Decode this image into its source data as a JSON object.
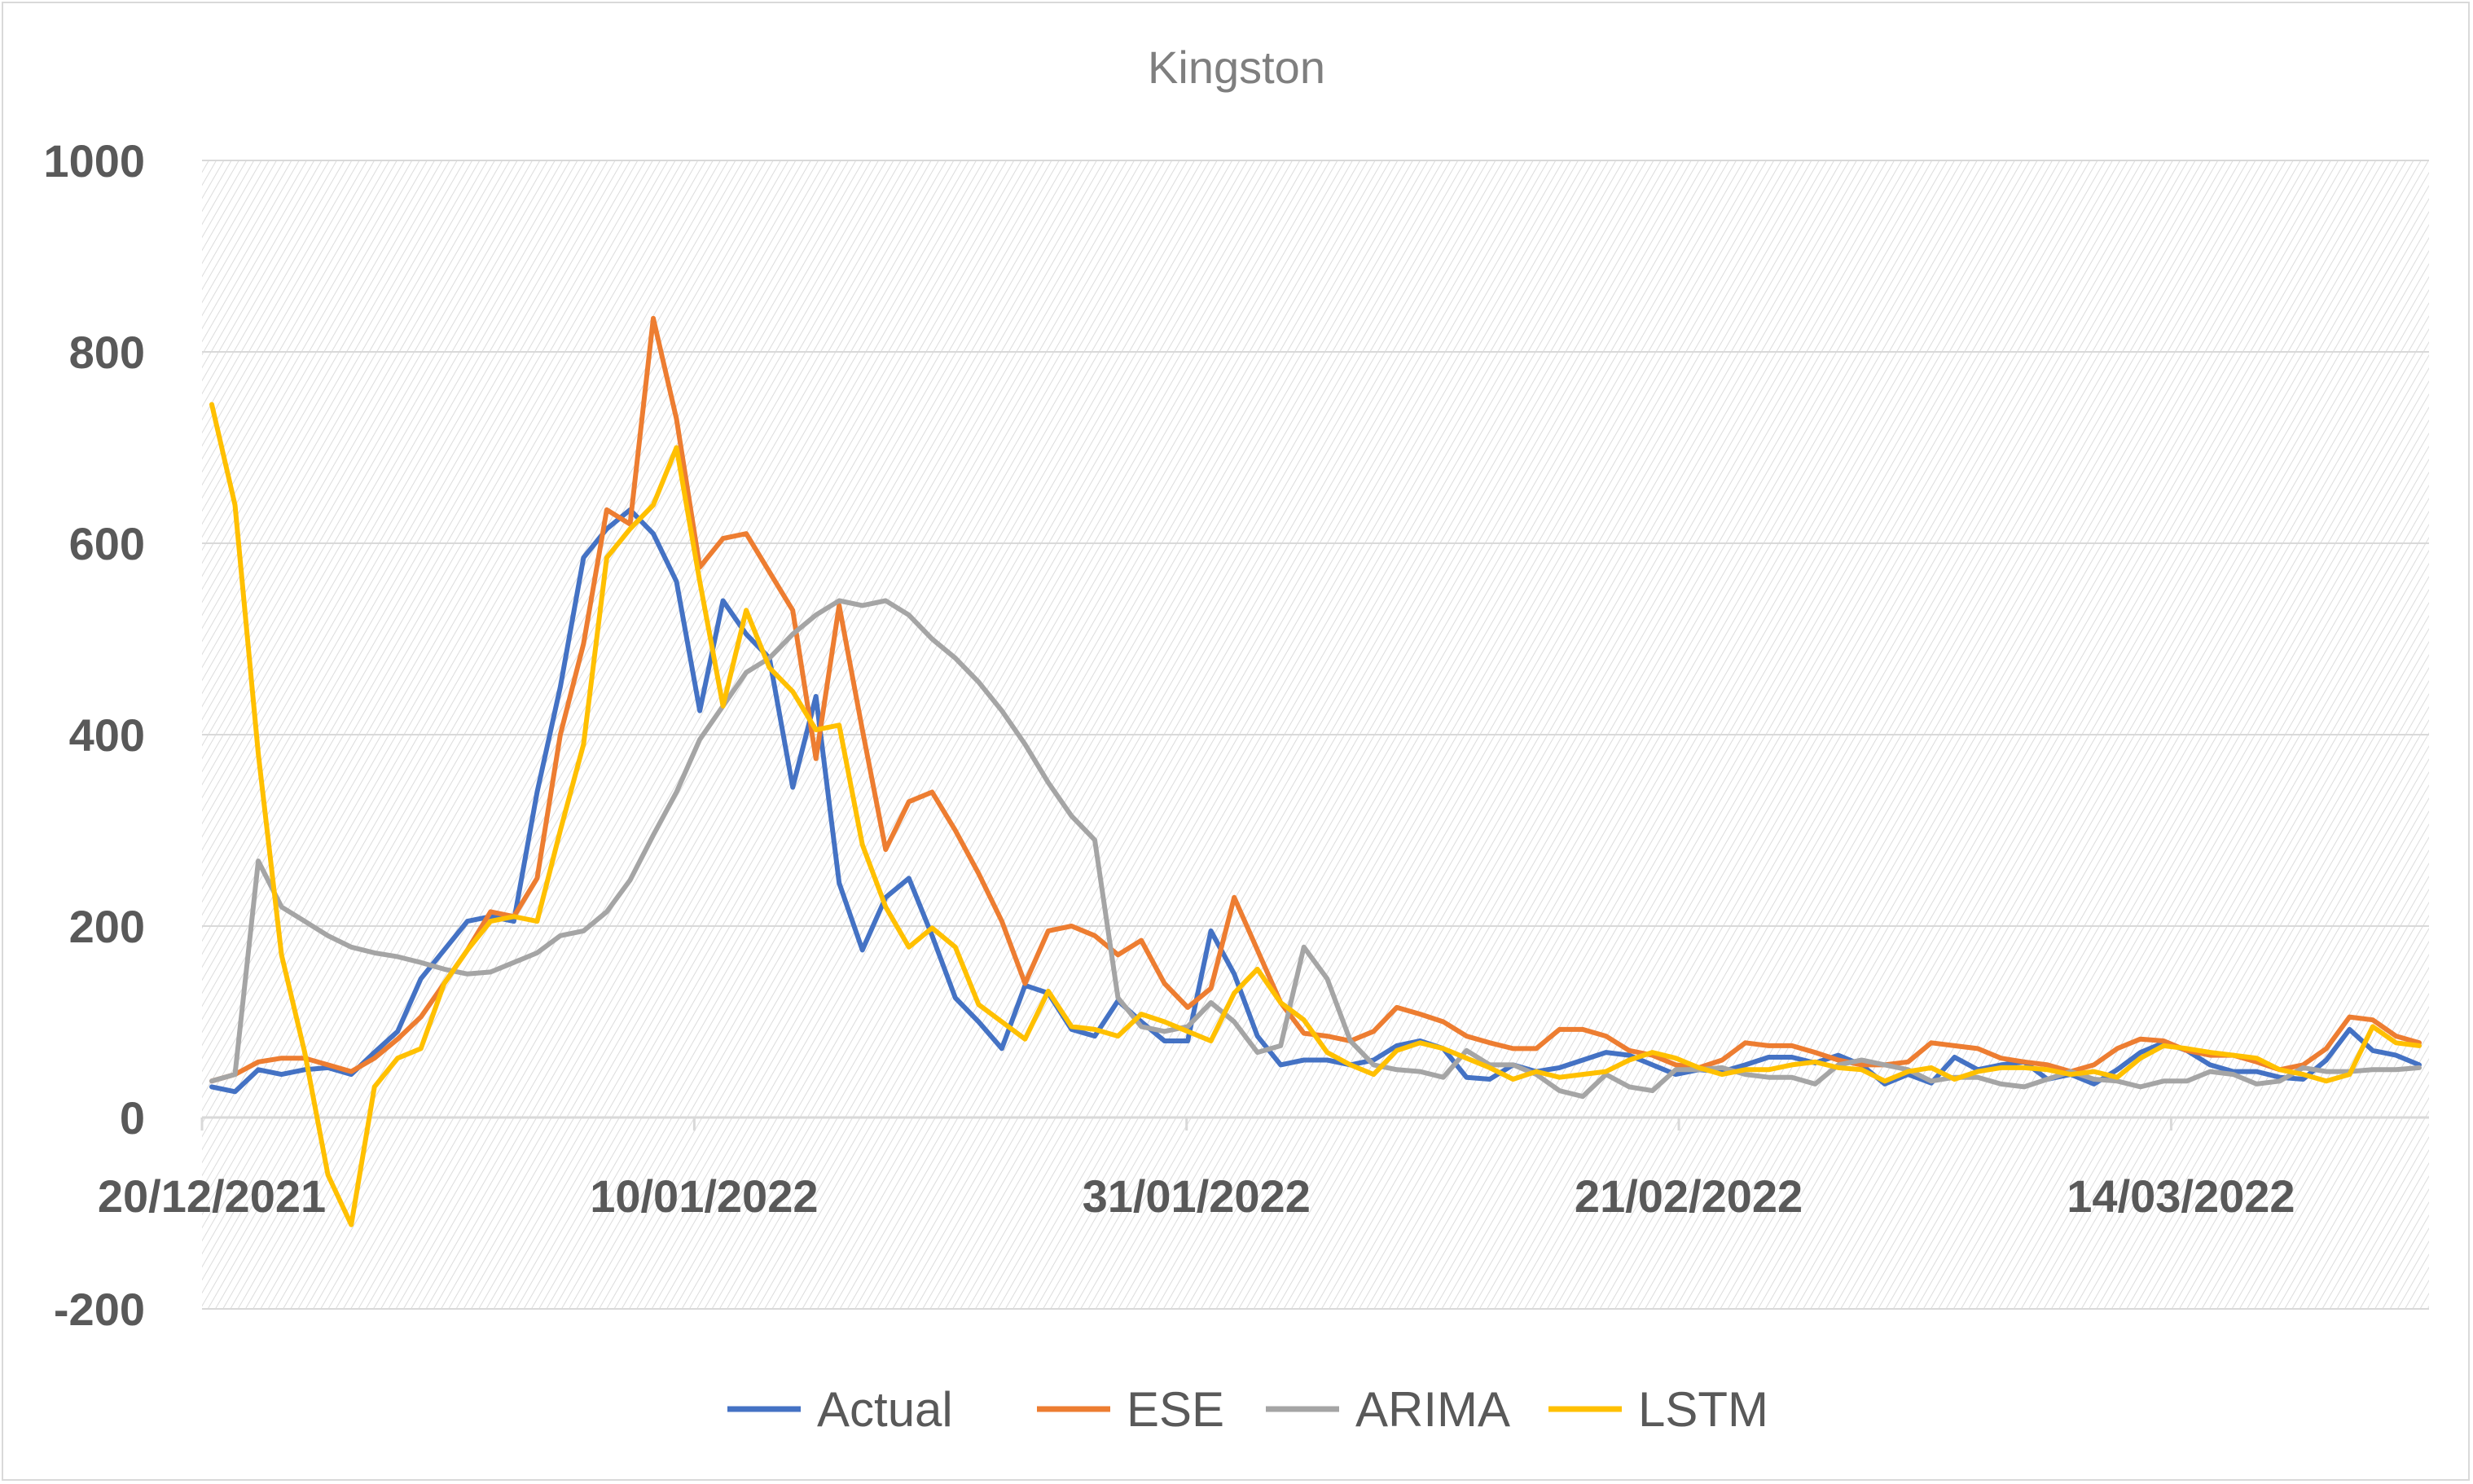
{
  "chart_data": {
    "type": "line",
    "title": "Kingston",
    "xlabel": "",
    "ylabel": "",
    "ylim": [
      -200,
      1000
    ],
    "yticks": [
      1000,
      800,
      600,
      400,
      200,
      0,
      -200
    ],
    "x_start": "20/12/2021",
    "x_end": "25/03/2022",
    "xtick_labels": [
      "20/12/2021",
      "10/01/2022",
      "31/01/2022",
      "21/02/2022",
      "14/03/2022"
    ],
    "legend_position": "bottom",
    "grid": true,
    "series": [
      {
        "name": "Actual",
        "color": "#4472c4",
        "values": [
          32,
          27,
          50,
          45,
          50,
          52,
          45,
          68,
          90,
          145,
          175,
          205,
          210,
          205,
          340,
          450,
          585,
          615,
          635,
          610,
          560,
          425,
          540,
          505,
          480,
          345,
          440,
          245,
          175,
          230,
          250,
          190,
          125,
          100,
          72,
          138,
          130,
          92,
          85,
          122,
          100,
          80,
          80,
          195,
          150,
          85,
          55,
          60,
          60,
          55,
          60,
          75,
          80,
          72,
          42,
          40,
          55,
          48,
          52,
          60,
          68,
          65,
          55,
          45,
          50,
          48,
          55,
          63,
          63,
          57,
          65,
          55,
          35,
          45,
          36,
          63,
          50,
          55,
          58,
          40,
          45,
          35,
          50,
          68,
          78,
          70,
          55,
          48,
          48,
          42,
          40,
          60,
          92,
          70,
          65,
          55
        ]
      },
      {
        "name": "ESE",
        "color": "#ed7d31",
        "values": [
          38,
          45,
          58,
          62,
          62,
          55,
          48,
          62,
          82,
          105,
          140,
          175,
          215,
          210,
          250,
          400,
          495,
          635,
          620,
          835,
          730,
          575,
          605,
          610,
          570,
          530,
          375,
          535,
          405,
          280,
          330,
          340,
          300,
          255,
          205,
          140,
          195,
          200,
          190,
          170,
          185,
          140,
          115,
          135,
          230,
          175,
          120,
          88,
          85,
          80,
          90,
          115,
          108,
          100,
          85,
          78,
          72,
          72,
          92,
          92,
          85,
          70,
          65,
          55,
          52,
          60,
          78,
          75,
          75,
          68,
          60,
          55,
          55,
          58,
          78,
          75,
          72,
          62,
          58,
          55,
          48,
          55,
          72,
          82,
          80,
          70,
          65,
          65,
          58,
          50,
          55,
          72,
          105,
          102,
          85,
          78
        ]
      },
      {
        "name": "ARIMA",
        "color": "#a5a5a5",
        "values": [
          38,
          45,
          268,
          220,
          205,
          190,
          178,
          172,
          168,
          162,
          155,
          150,
          152,
          162,
          172,
          190,
          195,
          215,
          248,
          295,
          340,
          395,
          430,
          465,
          480,
          505,
          525,
          540,
          535,
          540,
          525,
          500,
          480,
          455,
          425,
          390,
          350,
          315,
          290,
          125,
          95,
          90,
          95,
          120,
          100,
          68,
          75,
          178,
          145,
          80,
          55,
          50,
          48,
          42,
          70,
          55,
          55,
          45,
          28,
          22,
          45,
          32,
          28,
          50,
          50,
          52,
          45,
          42,
          42,
          35,
          55,
          60,
          55,
          50,
          38,
          42,
          42,
          35,
          32,
          40,
          48,
          40,
          38,
          32,
          38,
          38,
          48,
          45,
          35,
          38,
          52,
          48,
          48,
          50,
          50,
          52
        ]
      },
      {
        "name": "LSTM",
        "color": "#ffc000",
        "values": [
          745,
          640,
          380,
          170,
          68,
          -60,
          -112,
          32,
          62,
          72,
          140,
          175,
          205,
          210,
          205,
          300,
          390,
          585,
          615,
          640,
          700,
          560,
          430,
          530,
          470,
          445,
          405,
          410,
          285,
          220,
          178,
          198,
          178,
          118,
          100,
          82,
          132,
          95,
          92,
          85,
          108,
          100,
          90,
          80,
          130,
          155,
          120,
          102,
          68,
          55,
          45,
          70,
          78,
          72,
          62,
          52,
          40,
          48,
          42,
          45,
          48,
          60,
          68,
          62,
          52,
          45,
          50,
          50,
          55,
          58,
          52,
          50,
          38,
          48,
          52,
          40,
          48,
          52,
          52,
          50,
          45,
          48,
          42,
          62,
          75,
          72,
          68,
          65,
          62,
          50,
          45,
          38,
          45,
          95,
          78,
          75
        ]
      }
    ]
  }
}
